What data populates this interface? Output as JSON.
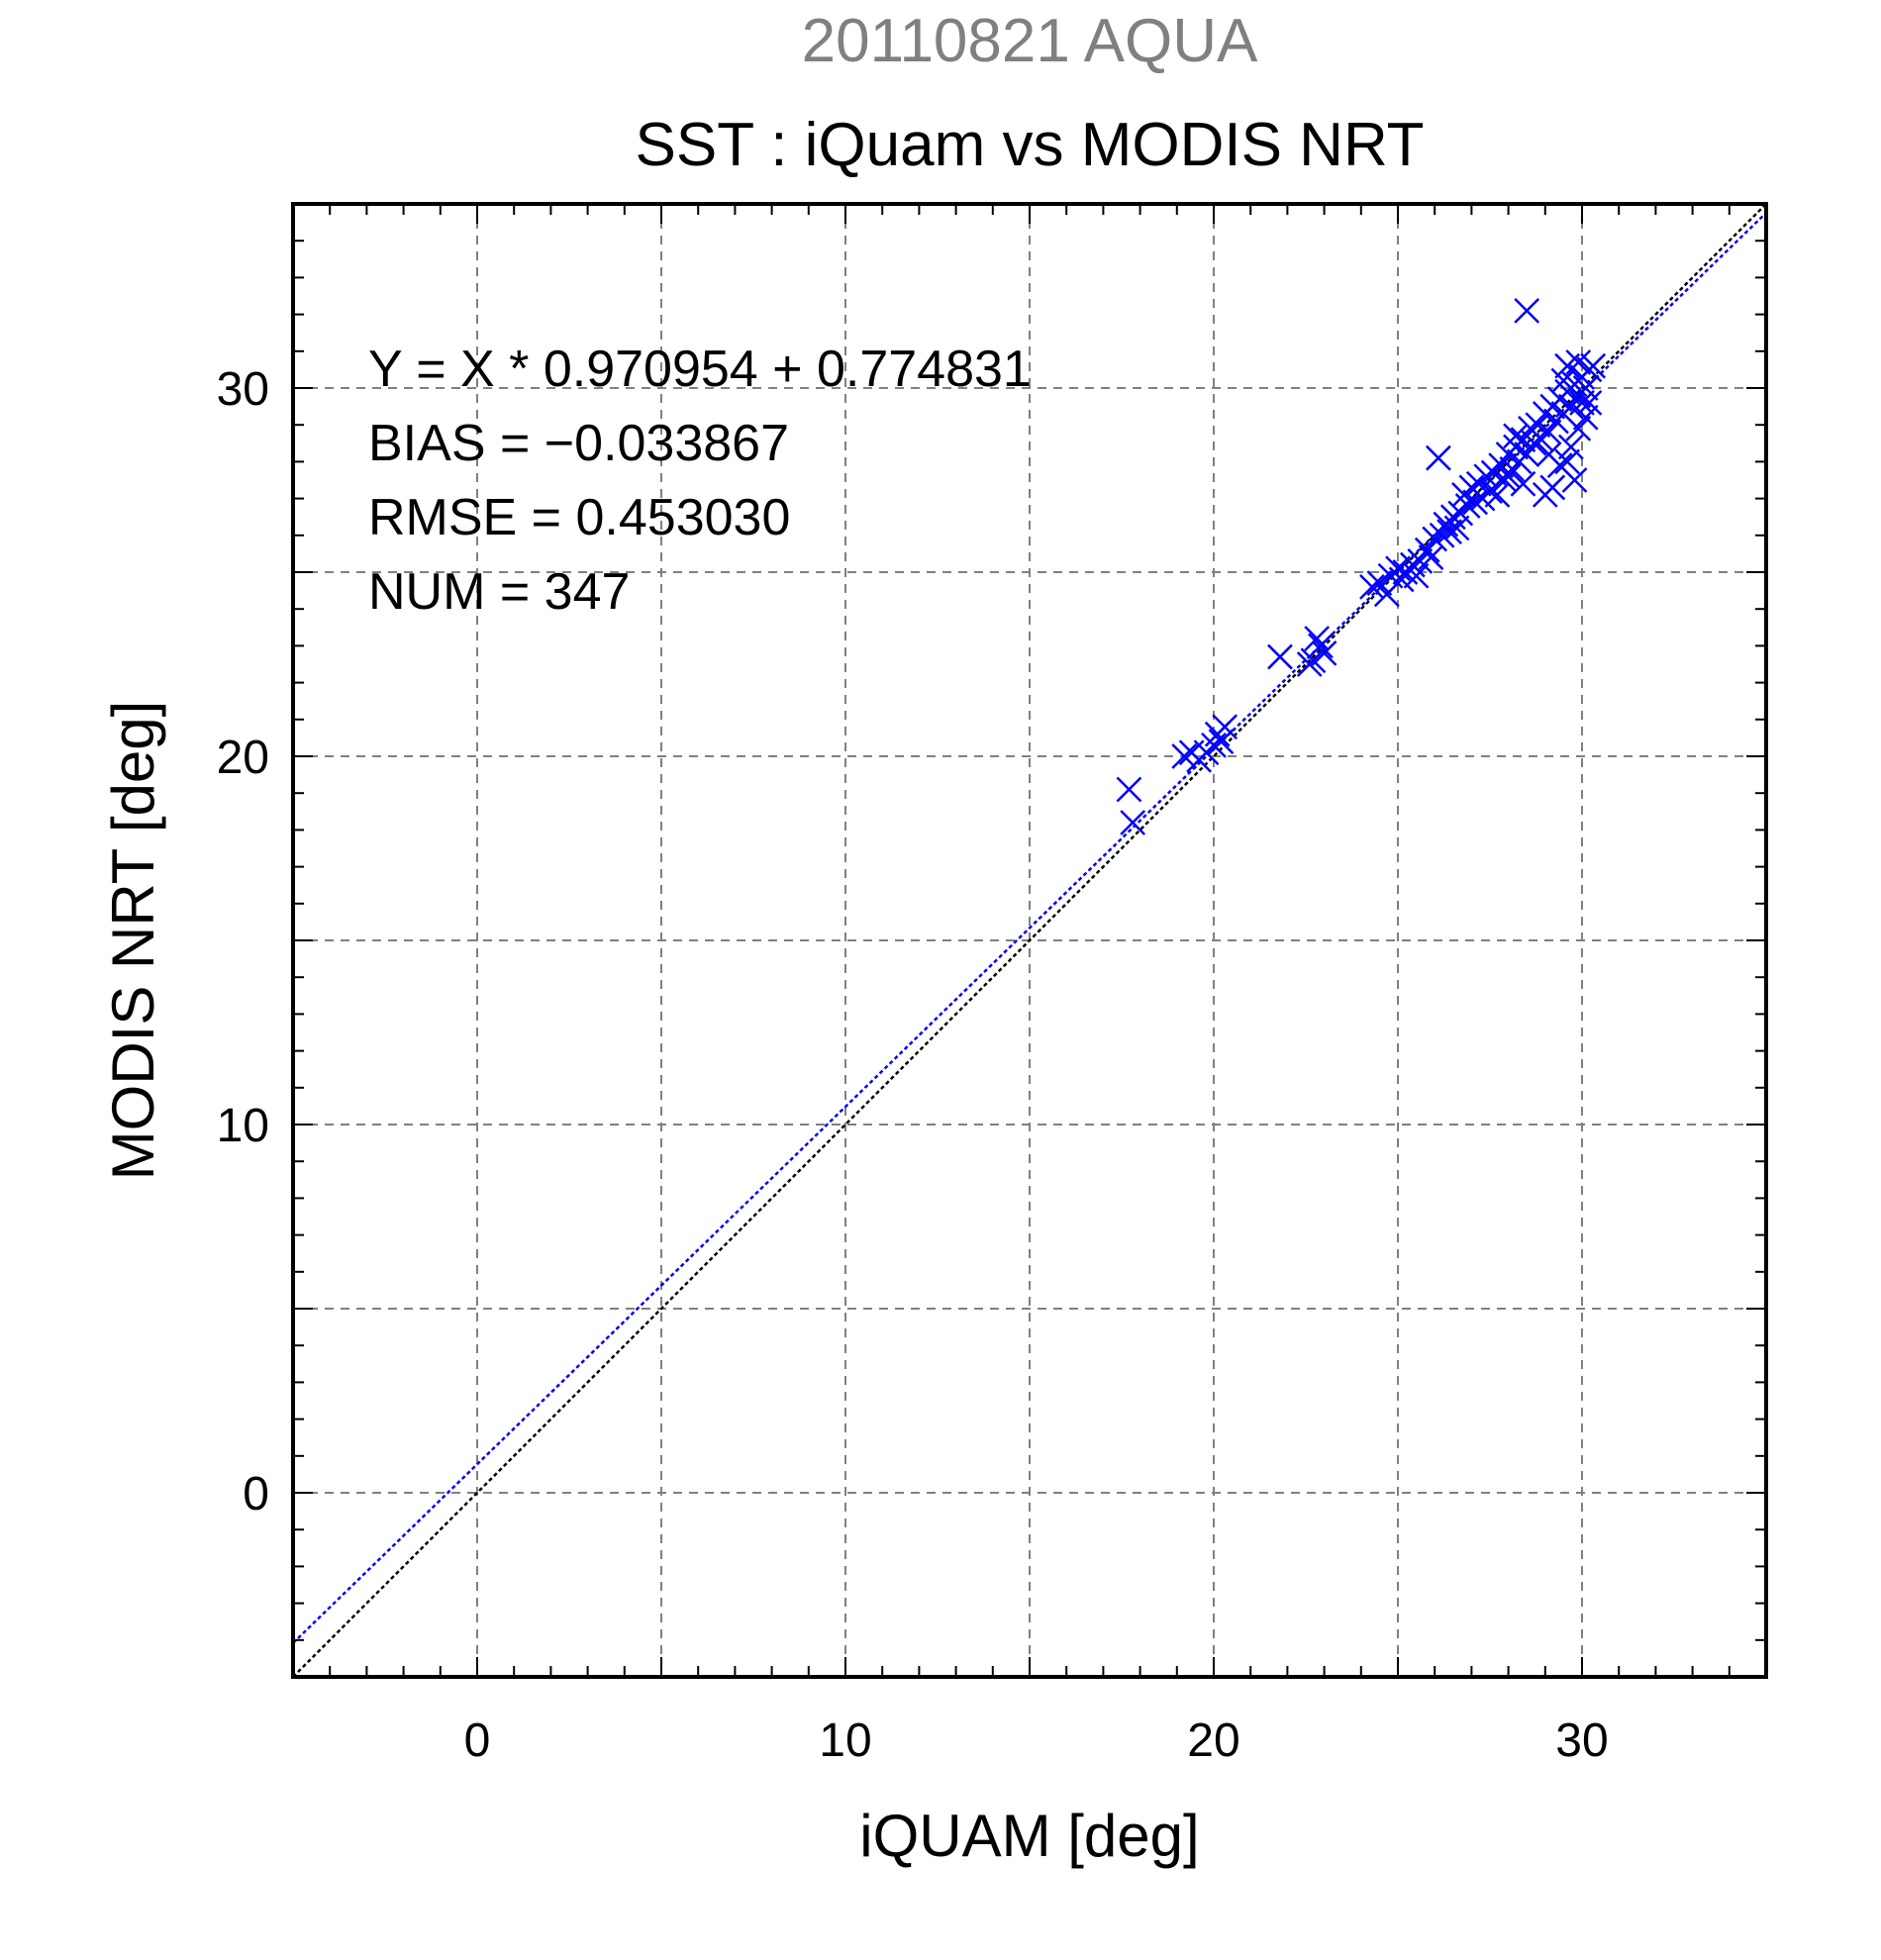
{
  "chart_data": {
    "type": "scatter",
    "subtitle": "20110821 AQUA",
    "title": "SST : iQuam vs MODIS NRT",
    "xlabel": "iQUAM [deg]",
    "ylabel": "MODIS NRT [deg]",
    "xlim": [
      -5,
      35
    ],
    "ylim": [
      -5,
      35
    ],
    "x_ticks": [
      0,
      10,
      20,
      30
    ],
    "y_ticks": [
      0,
      10,
      20,
      30
    ],
    "x_tick_labels": [
      "0",
      "10",
      "20",
      "30"
    ],
    "y_tick_labels": [
      "0",
      "10",
      "20",
      "30"
    ],
    "grid": true,
    "grid_step": 5,
    "marker": "x",
    "colors": {
      "points": "#0000ff",
      "fit_line": "#0000ff",
      "identity_line": "#000000",
      "grid": "#808080",
      "subtitle": "#808080"
    },
    "stats": {
      "equation": "Y = X * 0.970954 + 0.774831",
      "bias": "BIAS = −0.033867",
      "rmse": "RMSE = 0.453030",
      "num": "NUM = 347"
    },
    "fit": {
      "slope": 0.970954,
      "intercept": 0.774831
    },
    "points": [
      [
        17.7,
        19.1
      ],
      [
        17.8,
        18.2
      ],
      [
        19.2,
        20.0
      ],
      [
        19.4,
        20.1
      ],
      [
        19.6,
        19.9
      ],
      [
        19.8,
        20.1
      ],
      [
        20.0,
        20.3
      ],
      [
        20.1,
        20.6
      ],
      [
        20.2,
        20.4
      ],
      [
        20.3,
        20.8
      ],
      [
        21.8,
        22.7
      ],
      [
        22.6,
        22.5
      ],
      [
        22.7,
        22.6
      ],
      [
        22.9,
        23.0
      ],
      [
        23.0,
        22.8
      ],
      [
        22.8,
        23.2
      ],
      [
        24.3,
        24.6
      ],
      [
        24.5,
        24.7
      ],
      [
        24.7,
        24.4
      ],
      [
        24.8,
        24.9
      ],
      [
        25.0,
        25.1
      ],
      [
        25.1,
        24.8
      ],
      [
        25.2,
        25.0
      ],
      [
        25.4,
        25.2
      ],
      [
        25.5,
        24.9
      ],
      [
        25.6,
        25.3
      ],
      [
        25.8,
        25.6
      ],
      [
        25.9,
        25.4
      ],
      [
        26.0,
        25.9
      ],
      [
        26.1,
        28.1
      ],
      [
        26.2,
        26.0
      ],
      [
        26.3,
        26.3
      ],
      [
        26.4,
        26.1
      ],
      [
        26.5,
        26.5
      ],
      [
        26.6,
        26.2
      ],
      [
        26.7,
        26.6
      ],
      [
        26.8,
        27.1
      ],
      [
        26.9,
        26.8
      ],
      [
        27.0,
        27.3
      ],
      [
        27.1,
        26.9
      ],
      [
        27.2,
        27.4
      ],
      [
        27.3,
        27.0
      ],
      [
        27.4,
        27.6
      ],
      [
        27.5,
        27.2
      ],
      [
        27.6,
        27.7
      ],
      [
        27.7,
        27.1
      ],
      [
        27.8,
        27.9
      ],
      [
        27.9,
        27.5
      ],
      [
        28.0,
        28.2
      ],
      [
        28.1,
        27.8
      ],
      [
        28.2,
        28.4
      ],
      [
        28.3,
        28.0
      ],
      [
        28.4,
        28.6
      ],
      [
        28.5,
        28.2
      ],
      [
        28.6,
        28.9
      ],
      [
        28.7,
        28.5
      ],
      [
        28.5,
        32.1
      ],
      [
        28.2,
        28.7
      ],
      [
        28.0,
        27.6
      ],
      [
        28.4,
        27.4
      ],
      [
        28.8,
        29.0
      ],
      [
        28.9,
        28.6
      ],
      [
        29.0,
        29.3
      ],
      [
        29.1,
        28.8
      ],
      [
        29.2,
        29.5
      ],
      [
        29.3,
        29.1
      ],
      [
        29.4,
        29.7
      ],
      [
        29.5,
        29.3
      ],
      [
        29.6,
        29.9
      ],
      [
        29.7,
        29.5
      ],
      [
        29.8,
        30.1
      ],
      [
        29.9,
        29.8
      ],
      [
        30.0,
        30.3
      ],
      [
        30.1,
        30.0
      ],
      [
        30.2,
        30.5
      ],
      [
        29.6,
        30.6
      ],
      [
        29.9,
        30.7
      ],
      [
        30.3,
        30.6
      ],
      [
        30.0,
        29.6
      ],
      [
        29.5,
        30.2
      ],
      [
        29.0,
        27.1
      ],
      [
        29.2,
        27.3
      ],
      [
        29.8,
        27.5
      ],
      [
        29.6,
        28.0
      ],
      [
        29.4,
        27.9
      ],
      [
        29.7,
        28.4
      ],
      [
        29.9,
        28.9
      ],
      [
        29.1,
        28.2
      ],
      [
        30.1,
        29.2
      ],
      [
        30.2,
        29.6
      ]
    ]
  }
}
